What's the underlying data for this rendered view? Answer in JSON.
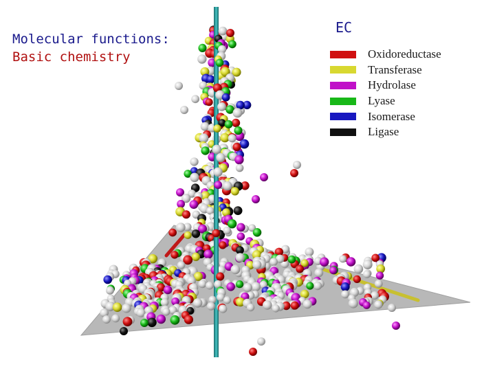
{
  "title": {
    "line1": "Molecular functions:",
    "line2": "Basic chemistry"
  },
  "legend": {
    "heading": "EC",
    "items": [
      {
        "label": "Oxidoreductase",
        "color": "#d01010"
      },
      {
        "label": "Transferase",
        "color": "#d8d830"
      },
      {
        "label": "Hydrolase",
        "color": "#c010c8"
      },
      {
        "label": "Lyase",
        "color": "#18b818"
      },
      {
        "label": "Isomerase",
        "color": "#1818c0"
      },
      {
        "label": "Ligase",
        "color": "#101010"
      }
    ]
  },
  "colors": {
    "plane": "#b8b8b8",
    "plane_edge": "#a0a0a0",
    "axis": "#2a9a9a",
    "unclassified": "#d8d8d8",
    "yellow_axis": "#c8c030"
  }
}
